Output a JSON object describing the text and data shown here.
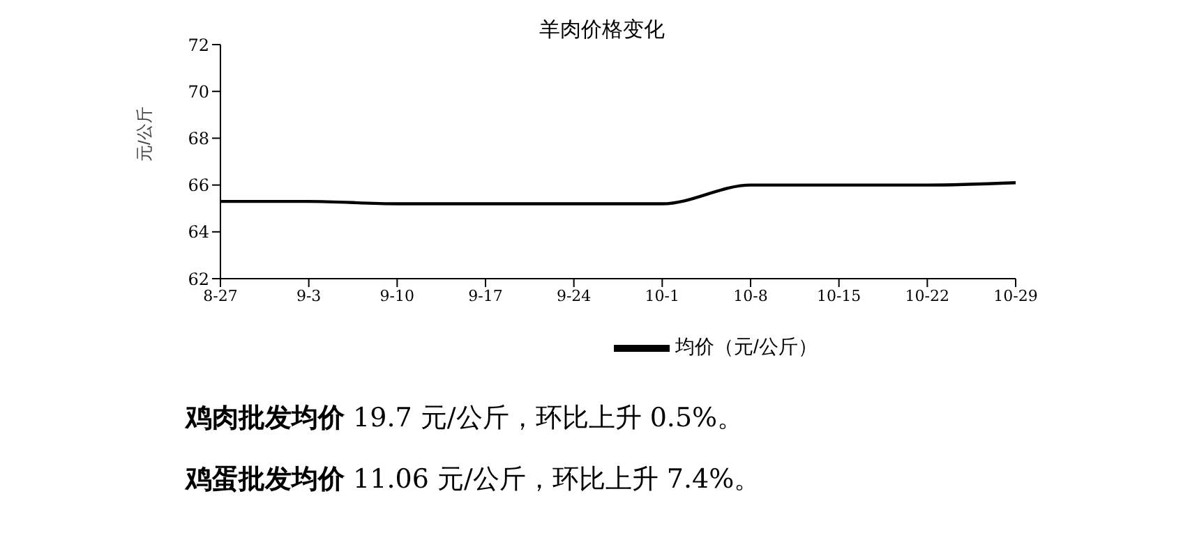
{
  "chart_data": {
    "type": "line",
    "title": "羊肉价格变化",
    "ylabel": "元/公斤",
    "categories": [
      "8-27",
      "9-3",
      "9-10",
      "9-17",
      "9-24",
      "10-1",
      "10-8",
      "10-15",
      "10-22",
      "10-29"
    ],
    "series": [
      {
        "name": "均价（元/公斤）",
        "color": "#000000",
        "values": [
          65.3,
          65.3,
          65.2,
          65.2,
          65.2,
          65.2,
          66.0,
          66.0,
          66.0,
          66.1
        ]
      }
    ],
    "ylim": [
      62,
      72
    ],
    "yticks": [
      62,
      64,
      66,
      68,
      70,
      72
    ],
    "grid": false,
    "legend": "bottom",
    "marker": "none",
    "line_style": "solid",
    "annotations": [
      "鸡肉批发均价 19.7 元/公斤，环比上升 0.5%。",
      "鸡蛋批发均价 11.06 元/公斤，环比上升 7.4%。"
    ]
  }
}
